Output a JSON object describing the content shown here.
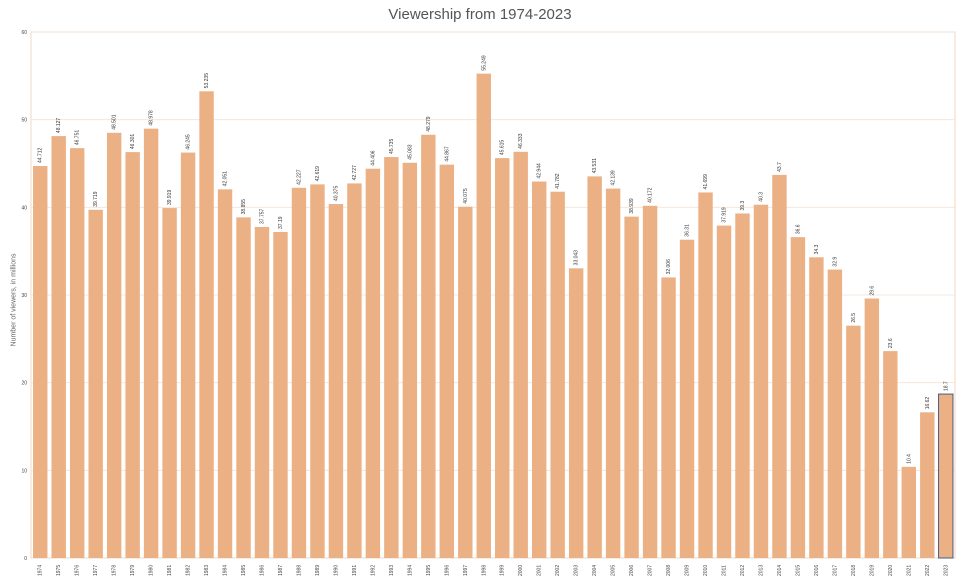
{
  "chart_data": {
    "type": "bar",
    "title": "Viewership from 1974-2023",
    "ylabel": "Number of viewers, in millions",
    "xlabel": "",
    "ylim": [
      0,
      60
    ],
    "yticks": [
      "0",
      "10",
      "20",
      "30",
      "40",
      "50",
      "60"
    ],
    "grid": true,
    "bar_color": "#ebb185",
    "highlight_color": "#4a5a82",
    "categories": [
      "1974",
      "1975",
      "1976",
      "1977",
      "1978",
      "1979",
      "1980",
      "1981",
      "1982",
      "1983",
      "1984",
      "1985",
      "1986",
      "1987",
      "1988",
      "1989",
      "1990",
      "1991",
      "1992",
      "1993",
      "1994",
      "1995",
      "1996",
      "1997",
      "1998",
      "1999",
      "2000",
      "2001",
      "2002",
      "2003",
      "2004",
      "2005",
      "2006",
      "2007",
      "2008",
      "2009",
      "2010",
      "2011",
      "2012",
      "2013",
      "2014",
      "2015",
      "2016",
      "2017",
      "2018",
      "2019",
      "2020",
      "2021",
      "2022",
      "2023"
    ],
    "values": [
      44.712,
      48.127,
      46.751,
      39.719,
      48.501,
      46.301,
      48.978,
      39.919,
      46.245,
      53.235,
      42.051,
      38.855,
      37.757,
      37.19,
      42.227,
      42.619,
      40.375,
      42.727,
      44.406,
      45.735,
      45.083,
      48.279,
      44.867,
      40.075,
      55.249,
      45.615,
      46.333,
      42.944,
      41.782,
      33.043,
      43.531,
      42.139,
      38.939,
      40.172,
      32.006,
      36.31,
      41.699,
      37.919,
      39.3,
      40.3,
      43.7,
      36.6,
      34.3,
      32.9,
      26.5,
      29.6,
      23.6,
      10.4,
      16.62,
      18.7
    ],
    "data_labels": [
      "44.712",
      "48.127",
      "46.751",
      "39.719",
      "48.501",
      "46.301",
      "48.978",
      "39.919",
      "46.245",
      "53.235",
      "42.051",
      "38.855",
      "37.757",
      "37.19",
      "42.227",
      "42.619",
      "40.375",
      "42.727",
      "44.406",
      "45.735",
      "45.083",
      "48.279",
      "44.867",
      "40.075",
      "55.249",
      "45.615",
      "46.333",
      "42.944",
      "41.782",
      "33.043",
      "43.531",
      "42.139",
      "38.939",
      "40.172",
      "32.006",
      "36.31",
      "41.699",
      "37.919",
      "39.3",
      "40.3",
      "43.7",
      "36.6",
      "34.3",
      "32.9",
      "26.5",
      "29.6",
      "23.6",
      "10.4",
      "16.62",
      "18.7"
    ],
    "highlighted_category": "2023"
  }
}
